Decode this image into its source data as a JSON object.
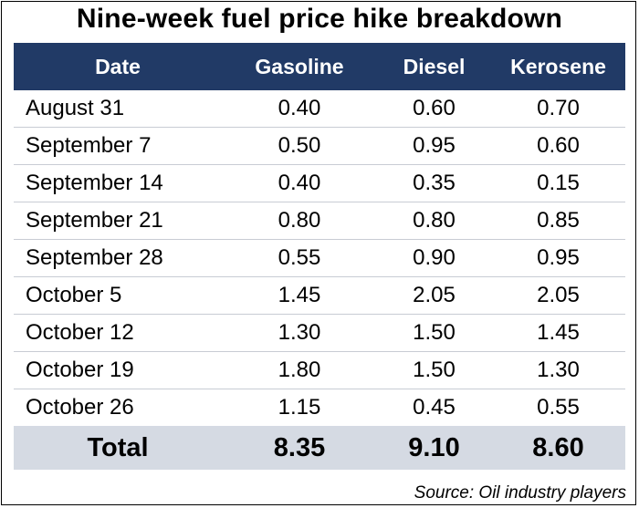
{
  "chart_data": {
    "type": "table",
    "title": "Nine-week fuel price hike breakdown",
    "columns": [
      "Date",
      "Gasoline",
      "Diesel",
      "Kerosene"
    ],
    "rows": [
      {
        "date": "August 31",
        "gasoline": "0.40",
        "diesel": "0.60",
        "kerosene": "0.70"
      },
      {
        "date": "September 7",
        "gasoline": "0.50",
        "diesel": "0.95",
        "kerosene": "0.60"
      },
      {
        "date": "September 14",
        "gasoline": "0.40",
        "diesel": "0.35",
        "kerosene": "0.15"
      },
      {
        "date": "September 21",
        "gasoline": "0.80",
        "diesel": "0.80",
        "kerosene": "0.85"
      },
      {
        "date": "September 28",
        "gasoline": "0.55",
        "diesel": "0.90",
        "kerosene": "0.95"
      },
      {
        "date": "October 5",
        "gasoline": "1.45",
        "diesel": "2.05",
        "kerosene": "2.05"
      },
      {
        "date": "October 12",
        "gasoline": "1.30",
        "diesel": "1.50",
        "kerosene": "1.45"
      },
      {
        "date": "October 19",
        "gasoline": "1.80",
        "diesel": "1.50",
        "kerosene": "1.30"
      },
      {
        "date": "October 26",
        "gasoline": "1.15",
        "diesel": "0.45",
        "kerosene": "0.55"
      }
    ],
    "total": {
      "label": "Total",
      "gasoline": "8.35",
      "diesel": "9.10",
      "kerosene": "8.60"
    },
    "source": "Source: Oil industry players"
  },
  "colors": {
    "header_bg": "#213a66",
    "header_text": "#ffffff",
    "total_bg": "#d5dae3",
    "row_divider": "#c8ccd4"
  }
}
